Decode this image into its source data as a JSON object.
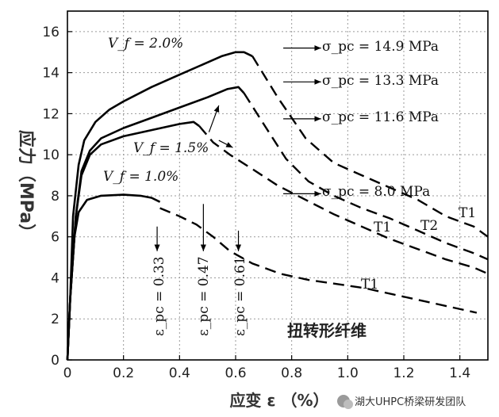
{
  "chart_data": {
    "type": "line",
    "xlabel": "应变 ε （%）",
    "ylabel": "应力（MPa）",
    "xlim": [
      0,
      1.5
    ],
    "ylim": [
      0,
      17
    ],
    "x_ticks": [
      "0",
      "0.2",
      "0.4",
      "0.6",
      "0.8",
      "1.0",
      "1.2",
      "1.4"
    ],
    "y_ticks": [
      "0",
      "2",
      "4",
      "6",
      "8",
      "10",
      "12",
      "14",
      "16"
    ],
    "grid": true,
    "series": [
      {
        "name": "V_f = 2.0%",
        "solid": [
          [
            0,
            0
          ],
          [
            0.01,
            3
          ],
          [
            0.02,
            7
          ],
          [
            0.04,
            9.5
          ],
          [
            0.06,
            10.7
          ],
          [
            0.1,
            11.6
          ],
          [
            0.15,
            12.2
          ],
          [
            0.2,
            12.6
          ],
          [
            0.3,
            13.3
          ],
          [
            0.4,
            13.9
          ],
          [
            0.5,
            14.5
          ],
          [
            0.55,
            14.8
          ],
          [
            0.6,
            15.0
          ],
          [
            0.63,
            15.0
          ],
          [
            0.66,
            14.8
          ]
        ],
        "dashed": [
          [
            0.66,
            14.8
          ],
          [
            0.75,
            12.8
          ],
          [
            0.85,
            10.8
          ],
          [
            0.95,
            9.6
          ],
          [
            1.05,
            9.0
          ],
          [
            1.15,
            8.4
          ],
          [
            1.25,
            7.8
          ],
          [
            1.35,
            7.0
          ],
          [
            1.45,
            6.5
          ],
          [
            1.5,
            6.0
          ]
        ]
      },
      {
        "name": "V_f = 1.5%",
        "solid": [
          [
            0,
            0
          ],
          [
            0.01,
            3
          ],
          [
            0.03,
            7
          ],
          [
            0.05,
            9.2
          ],
          [
            0.08,
            10.2
          ],
          [
            0.12,
            10.8
          ],
          [
            0.2,
            11.3
          ],
          [
            0.3,
            11.8
          ],
          [
            0.4,
            12.3
          ],
          [
            0.5,
            12.8
          ],
          [
            0.57,
            13.2
          ],
          [
            0.61,
            13.3
          ],
          [
            0.63,
            13.0
          ]
        ],
        "dashed": [
          [
            0.63,
            13.0
          ],
          [
            0.7,
            11.5
          ],
          [
            0.78,
            9.8
          ],
          [
            0.86,
            8.7
          ],
          [
            0.95,
            8.0
          ],
          [
            1.05,
            7.4
          ],
          [
            1.15,
            6.9
          ],
          [
            1.25,
            6.3
          ],
          [
            1.35,
            5.7
          ],
          [
            1.45,
            5.2
          ],
          [
            1.5,
            4.9
          ]
        ]
      },
      {
        "name": "V_f = 1.5% (σ_pc = 11.6)",
        "solid": [
          [
            0,
            0
          ],
          [
            0.01,
            3
          ],
          [
            0.03,
            7
          ],
          [
            0.05,
            9.0
          ],
          [
            0.08,
            10.0
          ],
          [
            0.12,
            10.5
          ],
          [
            0.2,
            10.9
          ],
          [
            0.3,
            11.2
          ],
          [
            0.4,
            11.5
          ],
          [
            0.45,
            11.6
          ],
          [
            0.47,
            11.4
          ]
        ],
        "dashed": [
          [
            0.47,
            11.4
          ],
          [
            0.52,
            10.6
          ],
          [
            0.58,
            10.0
          ],
          [
            0.66,
            9.3
          ],
          [
            0.75,
            8.5
          ],
          [
            0.85,
            7.8
          ],
          [
            0.95,
            7.1
          ],
          [
            1.05,
            6.5
          ],
          [
            1.15,
            5.9
          ],
          [
            1.25,
            5.4
          ],
          [
            1.35,
            4.9
          ],
          [
            1.45,
            4.5
          ],
          [
            1.5,
            4.2
          ]
        ]
      },
      {
        "name": "V_f = 1.0%",
        "solid": [
          [
            0,
            0
          ],
          [
            0.01,
            3
          ],
          [
            0.025,
            6
          ],
          [
            0.04,
            7.2
          ],
          [
            0.07,
            7.8
          ],
          [
            0.12,
            8.0
          ],
          [
            0.2,
            8.05
          ],
          [
            0.26,
            8.0
          ],
          [
            0.3,
            7.9
          ],
          [
            0.33,
            7.7
          ]
        ],
        "dashed": [
          [
            0.33,
            7.4
          ],
          [
            0.4,
            7.0
          ],
          [
            0.46,
            6.6
          ],
          [
            0.52,
            6.0
          ],
          [
            0.58,
            5.3
          ],
          [
            0.66,
            4.7
          ],
          [
            0.76,
            4.2
          ],
          [
            0.86,
            3.9
          ],
          [
            0.96,
            3.7
          ],
          [
            1.06,
            3.5
          ],
          [
            1.16,
            3.2
          ],
          [
            1.26,
            2.9
          ],
          [
            1.36,
            2.6
          ],
          [
            1.46,
            2.3
          ]
        ]
      }
    ],
    "annotations": {
      "vf_20": "V_f = 2.0%",
      "vf_15": "V_f = 1.5%",
      "vf_10": "V_f = 1.0%",
      "sig_1": "σ_pc = 14.9 MPa",
      "sig_2": "σ_pc = 13.3 MPa",
      "sig_3": "σ_pc = 11.6 MPa",
      "sig_4": "σ_pc = 8.0 MPa",
      "eps_1": "ε_pc = 0.33",
      "eps_2": "ε_pc = 0.47",
      "eps_3": "ε_pc = 0.61",
      "t1_a": "T1",
      "t2": "T2",
      "t1_b": "T1",
      "t1_c": "T1",
      "caption": "扭转形纤维"
    }
  },
  "watermark": "湖大UHPC桥梁研发团队"
}
